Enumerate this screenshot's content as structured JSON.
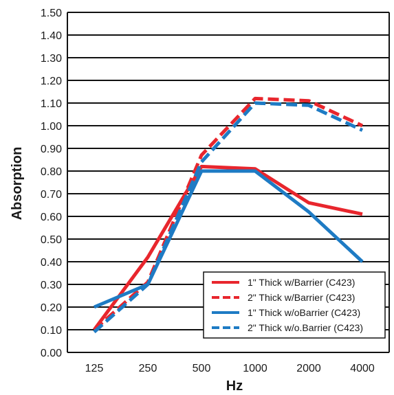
{
  "chart_data": {
    "type": "line",
    "categories": [
      "125",
      "250",
      "500",
      "1000",
      "2000",
      "4000"
    ],
    "xlabel": "Hz",
    "ylabel": "Absorption",
    "ylim": [
      0,
      1.5
    ],
    "yticks": [
      "0.00",
      "0.10",
      "0.20",
      "0.30",
      "0.40",
      "0.50",
      "0.60",
      "0.70",
      "0.80",
      "0.90",
      "1.00",
      "1.10",
      "1.20",
      "1.30",
      "1.40",
      "1.50"
    ],
    "grid": "horizontal",
    "legend_position": "bottom-right",
    "series": [
      {
        "name": "1\" Thick w/Barrier (C423)",
        "color": "#e8262d",
        "dash": "solid",
        "values": [
          0.1,
          0.42,
          0.82,
          0.81,
          0.66,
          0.61
        ]
      },
      {
        "name": "2\" Thick w/Barrier (C423)",
        "color": "#e8262d",
        "dash": "dashed",
        "values": [
          0.1,
          0.31,
          0.87,
          1.12,
          1.11,
          1.0
        ]
      },
      {
        "name": "1\" Thick w/oBarrier (C423)",
        "color": "#1e7bc4",
        "dash": "solid",
        "values": [
          0.2,
          0.3,
          0.8,
          0.8,
          0.62,
          0.4
        ]
      },
      {
        "name": "2\" Thick w/o.Barrier (C423)",
        "color": "#1e7bc4",
        "dash": "dashed",
        "values": [
          0.09,
          0.3,
          0.84,
          1.1,
          1.09,
          0.98
        ]
      }
    ]
  }
}
